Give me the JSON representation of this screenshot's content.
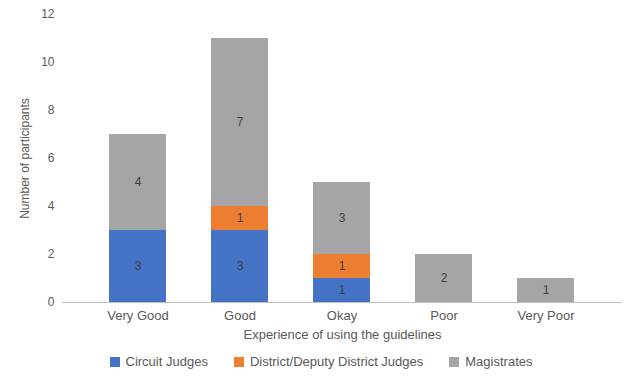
{
  "chart_data": {
    "type": "bar",
    "stacked": true,
    "data_labels": true,
    "grid": false,
    "legend": "bottom",
    "x_label": "Experience of using the guidelines",
    "y_label": "Number of participants",
    "categories": [
      "Very Good",
      "Good",
      "Okay",
      "Poor",
      "Very Poor"
    ],
    "series": [
      {
        "name": "Circuit Judges",
        "color": "#4472c4",
        "values": [
          3,
          3,
          1,
          0,
          0
        ]
      },
      {
        "name": "District/Deputy District Judges",
        "color": "#ed7d31",
        "values": [
          0,
          1,
          1,
          0,
          0
        ]
      },
      {
        "name": "Magistrates",
        "color": "#a5a5a5",
        "values": [
          4,
          7,
          3,
          2,
          1
        ]
      }
    ],
    "ylim": [
      0,
      12
    ],
    "yticks": [
      0,
      2,
      4,
      6,
      8,
      10,
      12
    ]
  }
}
